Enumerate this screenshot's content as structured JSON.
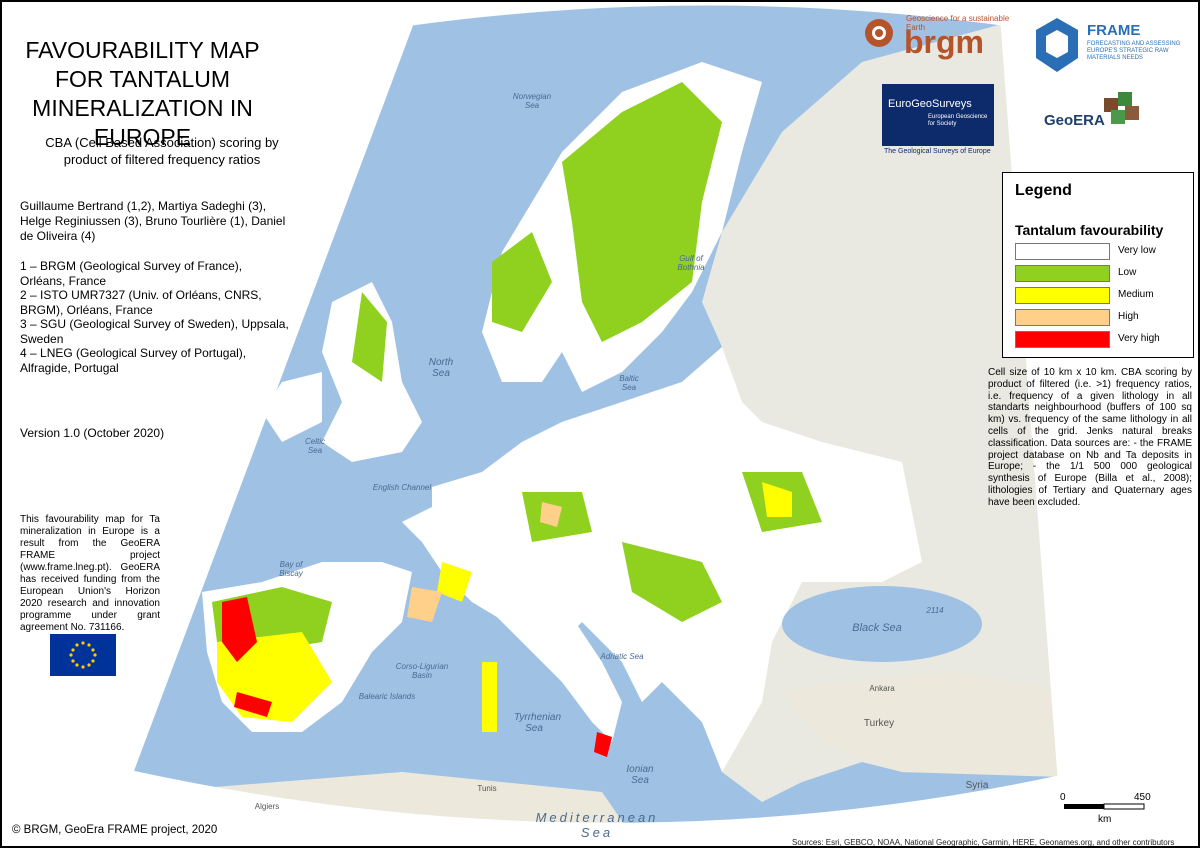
{
  "header": {
    "title": "FAVOURABILITY MAP FOR TANTALUM MINERALIZATION IN EUROPE",
    "subtitle": "CBA (Cell Based Association) scoring by product of filtered frequency ratios",
    "authors": "Guillaume Bertrand (1,2), Martiya Sadeghi (3), Helge Reginiussen (3), Bruno Tourlière (1), Daniel de Oliveira (4)",
    "affiliations": [
      "1 – BRGM (Geological Survey of France), Orléans, France",
      "2 – ISTO UMR7327 (Univ. of Orléans, CNRS, BRGM), Orléans, France",
      "3 – SGU (Geological Survey of Sweden), Uppsala, Sweden",
      "4 – LNEG (Geological Survey of Portugal), Alfragide, Portugal"
    ],
    "version": "Version 1.0 (October 2020)"
  },
  "funding": "This favourability map for Ta mineralization in Europe is a result from the GeoERA FRAME project (www.frame.lneg.pt). GeoERA has received funding from the European Union's Horizon 2020 research and innovation programme under grant agreement No. 731166.",
  "logos": {
    "brgm": "brgm",
    "brgm_tagline": "Geoscience for a sustainable Earth",
    "frame": "FRAME",
    "frame_tagline": "FORECASTING AND ASSESSING EUROPE'S STRATEGIC RAW MATERIALS NEEDS",
    "egs": "EuroGeoSurveys",
    "egs_tagline": "European Geoscience for Society",
    "egs_footer": "The Geological Surveys of Europe",
    "geoera": "GeoERA"
  },
  "legend": {
    "title": "Legend",
    "subtitle": "Tantalum favourability",
    "items": [
      {
        "label": "Very low",
        "color": "#ffffff"
      },
      {
        "label": "Low",
        "color": "#8fd11e"
      },
      {
        "label": "Medium",
        "color": "#ffff00"
      },
      {
        "label": "High",
        "color": "#ffd08a"
      },
      {
        "label": "Very high",
        "color": "#ff0000"
      }
    ]
  },
  "note": "Cell size of 10 km x 10 km. CBA scoring by product of filtered (i.e. >1) frequency ratios, i.e. frequency of a given lithology in all standarts neighbourhood (buffers of 100 sq km) vs. frequency of the same lithology in all cells of the grid. Jenks natural breaks classification. Data sources are: - the FRAME project database on Nb and Ta deposits in Europe; - the 1/1 500 000 geological synthesis of Europe (Billa et al., 2008); lithologies of Tertiary and Quaternary ages have been excluded.",
  "map_labels": [
    "Norwegian Sea",
    "Gulf of Bothnia",
    "North Sea",
    "Baltic Sea",
    "Celtic Sea",
    "English Channel",
    "Bay of Biscay",
    "Corso-Ligurian Basin",
    "Balearic Islands",
    "Tyrrhenian Sea",
    "Adriatic Sea",
    "Ionian Sea",
    "Black Sea",
    "Mediterranean Sea",
    "Turkey",
    "Ankara",
    "Syria",
    "Algiers",
    "Tunis",
    "2114"
  ],
  "scale": {
    "start": "0",
    "end": "450",
    "unit": "km"
  },
  "copyright": "© BRGM, GeoEra FRAME project, 2020",
  "sources": "Sources: Esri, GEBCO, NOAA, National Geographic, Garmin, HERE, Geonames.org, and other contributors"
}
